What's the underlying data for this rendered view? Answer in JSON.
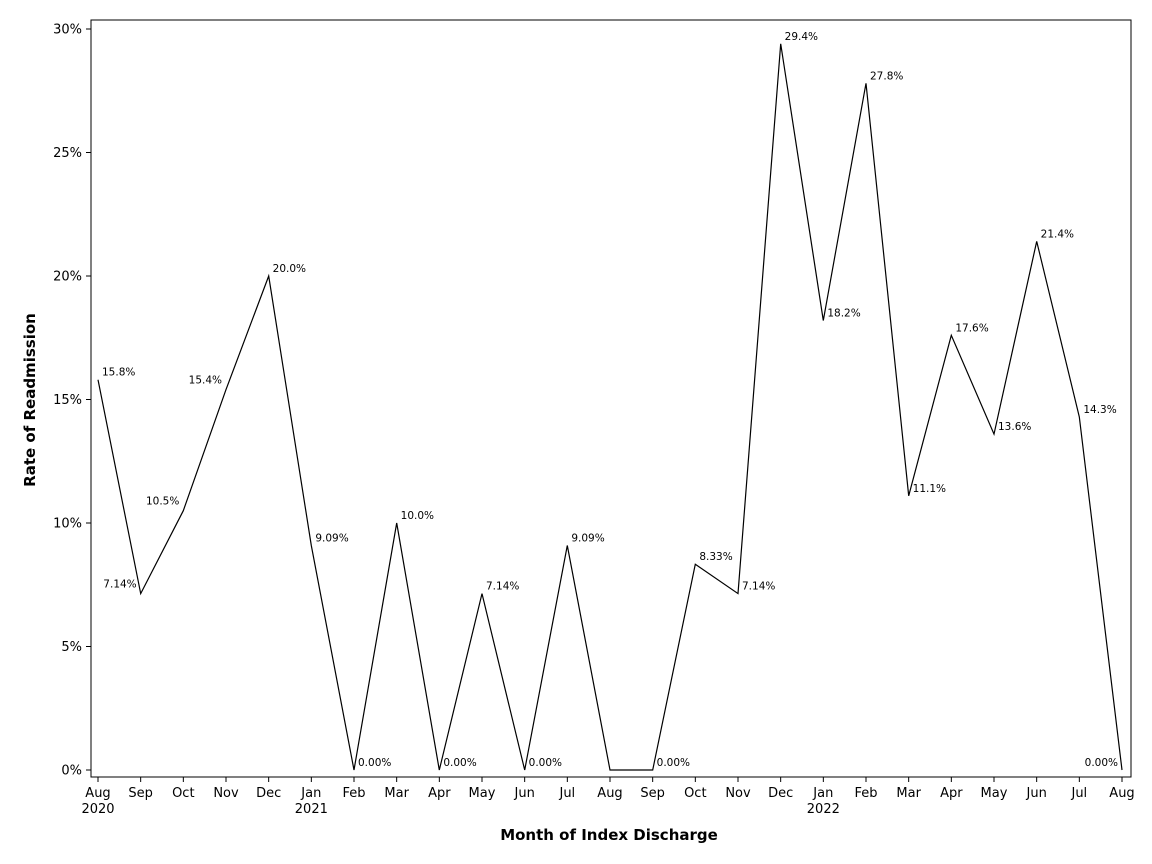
{
  "chart_data": {
    "type": "line",
    "xlabel": "Month of Index Discharge",
    "ylabel": "Rate of Readmission",
    "ylim": [
      0,
      30
    ],
    "y_ticks": [
      0,
      5,
      10,
      15,
      20,
      25,
      30
    ],
    "y_tick_labels": [
      "0%",
      "5%",
      "10%",
      "15%",
      "20%",
      "25%",
      "30%"
    ],
    "grid": false,
    "categories": [
      "Aug",
      "Sep",
      "Oct",
      "Nov",
      "Dec",
      "Jan",
      "Feb",
      "Mar",
      "Apr",
      "May",
      "Jun",
      "Jul",
      "Aug",
      "Sep",
      "Oct",
      "Nov",
      "Dec",
      "Jan",
      "Feb",
      "Mar",
      "Apr",
      "May",
      "Jun",
      "Jul",
      "Aug"
    ],
    "year_labels": [
      {
        "index": 0,
        "label": "2020"
      },
      {
        "index": 5,
        "label": "2021"
      },
      {
        "index": 17,
        "label": "2022"
      }
    ],
    "values": [
      15.8,
      7.14,
      10.5,
      15.4,
      20.0,
      9.09,
      0,
      10.0,
      0,
      7.14,
      0,
      9.09,
      0,
      0,
      8.33,
      7.14,
      29.4,
      18.2,
      27.8,
      11.1,
      17.6,
      13.6,
      21.4,
      14.3,
      0
    ],
    "data_labels": [
      "15.8%",
      "7.14%",
      "10.5%",
      "15.4%",
      "20.0%",
      "9.09%",
      "0.00%",
      "10.0%",
      "0.00%",
      "7.14%",
      "0.00%",
      "9.09%",
      "",
      "0.00%",
      "8.33%",
      "7.14%",
      "29.4%",
      "18.2%",
      "27.8%",
      "11.1%",
      "17.6%",
      "13.6%",
      "21.4%",
      "14.3%",
      "0.00%"
    ],
    "line_color": "#000000"
  }
}
